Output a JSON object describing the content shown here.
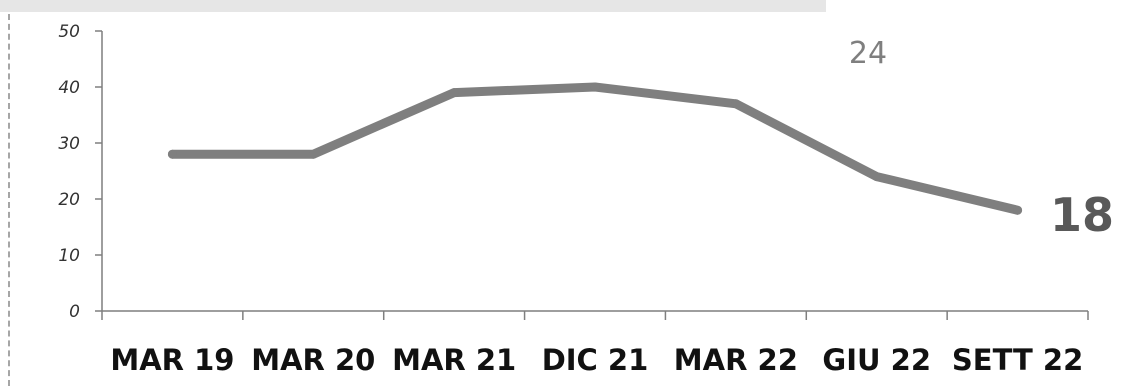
{
  "chart_data": {
    "type": "line",
    "categories": [
      "MAR 19",
      "MAR 20",
      "MAR 21",
      "DIC 21",
      "MAR 22",
      "GIU 22",
      "SETT 22"
    ],
    "series": [
      {
        "values": [
          28,
          28,
          39,
          40,
          37,
          24,
          18
        ],
        "color": "#7f7f7f"
      }
    ],
    "ylim": [
      0,
      50
    ],
    "yticks": [
      0,
      10,
      20,
      30,
      40,
      50
    ],
    "title": "",
    "xlabel": "",
    "ylabel": "",
    "grid": false,
    "legend": "none",
    "annotation": "24",
    "last_point_label": "18"
  }
}
